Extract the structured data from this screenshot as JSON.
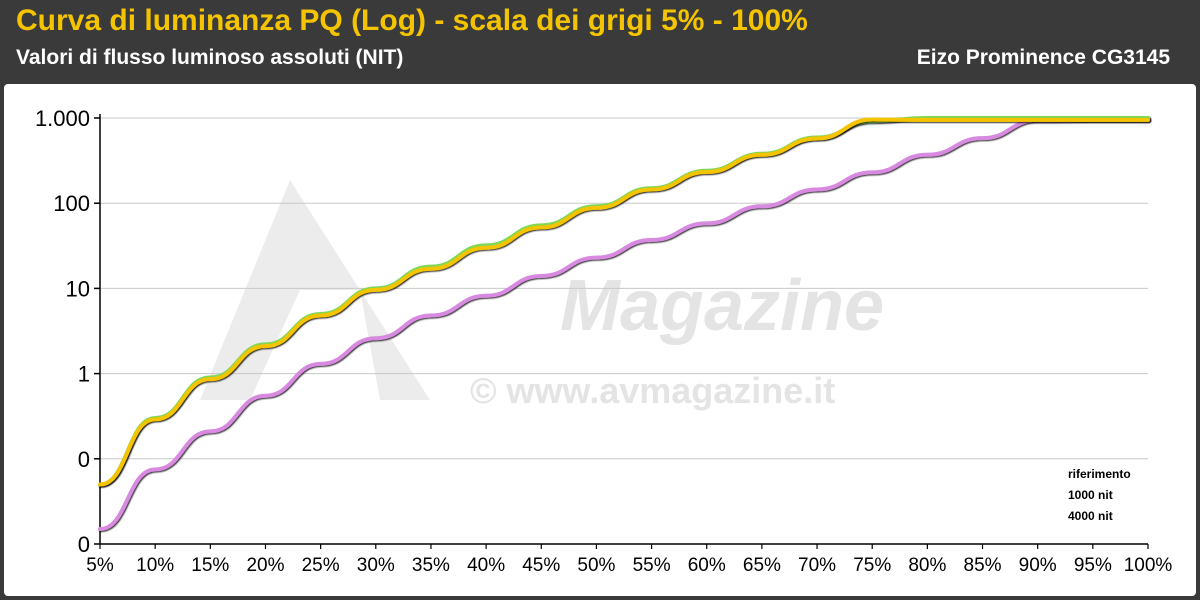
{
  "header": {
    "title": "Curva di luminanza PQ (Log) - scala dei grigi 5% - 100%",
    "subtitle": "Valori di flusso luminoso assoluti (NIT)",
    "device": "Eizo Prominence CG3145"
  },
  "watermark": {
    "logo": "AVMagazine",
    "url": "© www.avmagazine.it"
  },
  "colors": {
    "riferimento": "#7ed957",
    "1000 nit": "#f5c400",
    "4000 nit": "#d889e0"
  },
  "chart_data": {
    "type": "line",
    "title": "Curva di luminanza PQ (Log) - scala dei grigi 5% - 100%",
    "xlabel": "",
    "ylabel": "",
    "y_scale": "log",
    "ylim": [
      0.01,
      1000
    ],
    "y_tick_values": [
      0.01,
      0.1,
      1,
      10,
      100,
      1000
    ],
    "y_tick_labels": [
      "0",
      "0",
      "1",
      "10",
      "100",
      "1.000"
    ],
    "categories": [
      "5%",
      "10%",
      "15%",
      "20%",
      "25%",
      "30%",
      "35%",
      "40%",
      "45%",
      "50%",
      "55%",
      "60%",
      "65%",
      "70%",
      "75%",
      "80%",
      "85%",
      "90%",
      "95%",
      "100%"
    ],
    "grid": true,
    "legend_position": "bottom-right",
    "series": [
      {
        "name": "riferimento",
        "values": [
          0.05,
          0.3,
          0.9,
          2.2,
          5,
          10,
          18,
          32,
          55,
          92,
          150,
          240,
          380,
          590,
          920,
          1000,
          1000,
          1000,
          1000,
          1000
        ]
      },
      {
        "name": "1000 nit",
        "values": [
          0.05,
          0.29,
          0.86,
          2.1,
          4.8,
          9.6,
          17,
          30,
          52,
          88,
          145,
          232,
          370,
          575,
          960,
          950,
          950,
          950,
          950,
          950
        ]
      },
      {
        "name": "4000 nit",
        "values": [
          0.015,
          0.075,
          0.21,
          0.55,
          1.3,
          2.6,
          4.8,
          8.2,
          14,
          23,
          37,
          58,
          92,
          145,
          230,
          370,
          580,
          940,
          950,
          950
        ]
      }
    ]
  }
}
